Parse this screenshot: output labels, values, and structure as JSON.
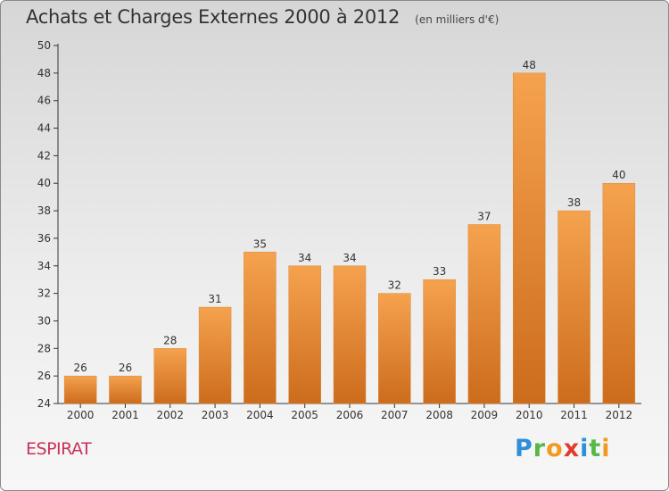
{
  "header": {
    "title": "Achats et Charges Externes 2000 à 2012",
    "unit": "(en milliers d'€)"
  },
  "footer": {
    "commune": "ESPIRAT",
    "brand": [
      "P",
      "r",
      "o",
      "x",
      "i",
      "t",
      "i"
    ]
  },
  "chart_data": {
    "type": "bar",
    "categories": [
      "2000",
      "2001",
      "2002",
      "2003",
      "2004",
      "2005",
      "2006",
      "2007",
      "2008",
      "2009",
      "2010",
      "2011",
      "2012"
    ],
    "values": [
      26,
      26,
      28,
      31,
      35,
      34,
      34,
      32,
      33,
      37,
      48,
      38,
      40
    ],
    "ylim": [
      24,
      50
    ],
    "yticks": [
      24,
      26,
      28,
      30,
      32,
      34,
      36,
      38,
      40,
      42,
      44,
      46,
      48,
      50
    ],
    "grid": false,
    "data_labels": true,
    "bar_color_top": "#f5a24e",
    "bar_color_bottom": "#cc6c1c"
  }
}
